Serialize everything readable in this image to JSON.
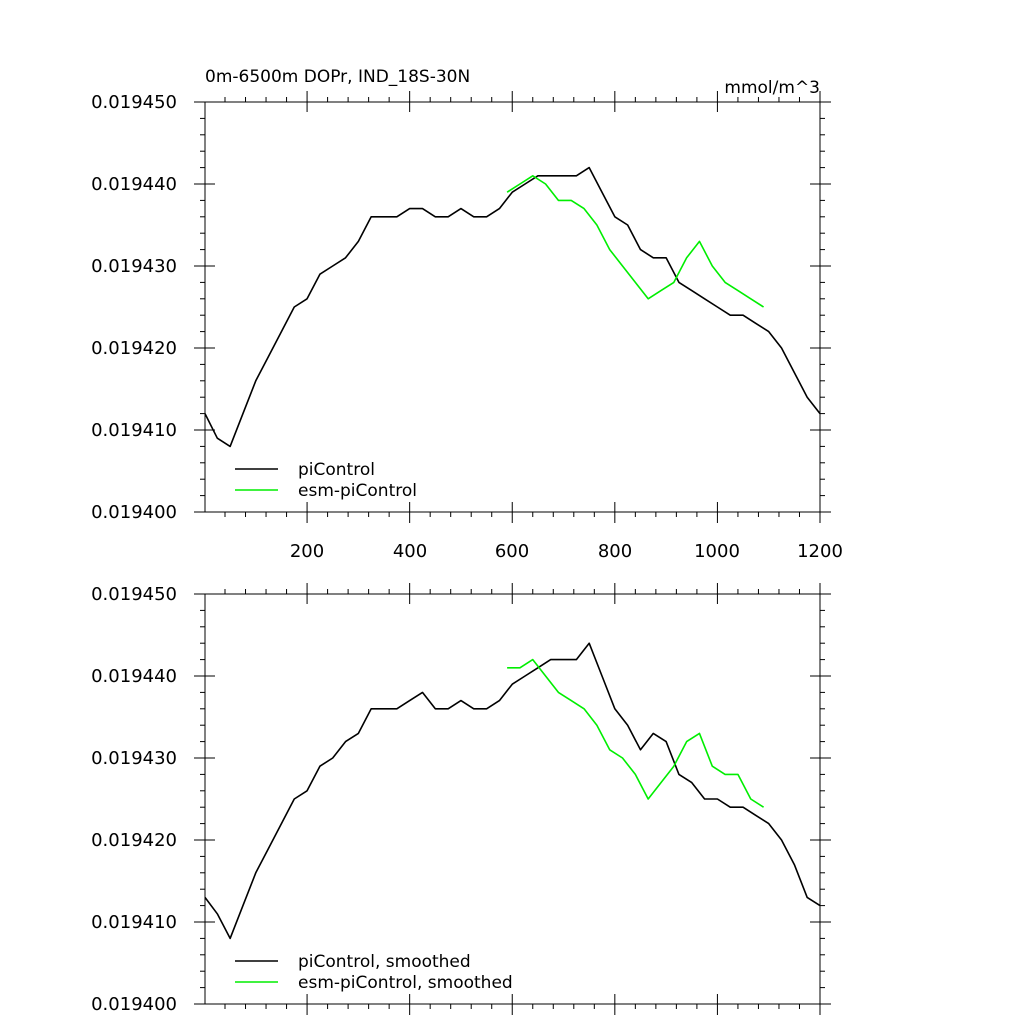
{
  "chart_data": [
    {
      "type": "line",
      "title": "0m-6500m DOPr, IND_18S-30N",
      "units": "mmol/m^3",
      "xlim": [
        1,
        1200
      ],
      "ylim": [
        0.0194,
        0.01945
      ],
      "xticks": [
        200,
        400,
        600,
        800,
        1000,
        1200
      ],
      "yticks": [
        "0.019400",
        "0.019410",
        "0.019420",
        "0.019430",
        "0.019440",
        "0.019450"
      ],
      "legend_position": "bottom-left",
      "series": [
        {
          "name": "piControl",
          "color": "#000000",
          "x": [
            1,
            25,
            50,
            75,
            100,
            125,
            150,
            175,
            200,
            225,
            250,
            275,
            300,
            325,
            350,
            375,
            400,
            425,
            450,
            475,
            500,
            525,
            550,
            575,
            600,
            625,
            650,
            675,
            700,
            725,
            750,
            775,
            800,
            825,
            850,
            875,
            900,
            925,
            950,
            975,
            1000,
            1025,
            1050,
            1075,
            1100,
            1125,
            1150,
            1175,
            1200
          ],
          "y": [
            0.019412,
            0.019409,
            0.019408,
            0.019412,
            0.019416,
            0.019419,
            0.019422,
            0.019425,
            0.019426,
            0.019429,
            0.01943,
            0.019431,
            0.019433,
            0.019436,
            0.019436,
            0.019436,
            0.019437,
            0.019437,
            0.019436,
            0.019436,
            0.019437,
            0.019436,
            0.019436,
            0.019437,
            0.019439,
            0.01944,
            0.019441,
            0.019441,
            0.019441,
            0.019441,
            0.019442,
            0.019439,
            0.019436,
            0.019435,
            0.019432,
            0.019431,
            0.019431,
            0.019428,
            0.019427,
            0.019426,
            0.019425,
            0.019424,
            0.019424,
            0.019423,
            0.019422,
            0.01942,
            0.019417,
            0.019414,
            0.019412
          ]
        },
        {
          "name": "esm-piControl",
          "color": "#00ee00",
          "x": [
            590,
            615,
            640,
            665,
            690,
            715,
            740,
            765,
            790,
            815,
            840,
            865,
            890,
            915,
            940,
            965,
            990,
            1015,
            1040,
            1065,
            1090
          ],
          "y": [
            0.019439,
            0.01944,
            0.019441,
            0.01944,
            0.019438,
            0.019438,
            0.019437,
            0.019435,
            0.019432,
            0.01943,
            0.019428,
            0.019426,
            0.019427,
            0.019428,
            0.019431,
            0.019433,
            0.01943,
            0.019428,
            0.019427,
            0.019426,
            0.019425
          ]
        }
      ]
    },
    {
      "type": "line",
      "xlim": [
        1,
        1200
      ],
      "ylim": [
        0.0194,
        0.01945
      ],
      "yticks": [
        "0.019400",
        "0.019410",
        "0.019420",
        "0.019430",
        "0.019440",
        "0.019450"
      ],
      "legend_position": "bottom-left",
      "series": [
        {
          "name": "piControl, smoothed",
          "color": "#000000",
          "x": [
            1,
            25,
            50,
            75,
            100,
            125,
            150,
            175,
            200,
            225,
            250,
            275,
            300,
            325,
            350,
            375,
            400,
            425,
            450,
            475,
            500,
            525,
            550,
            575,
            600,
            625,
            650,
            675,
            700,
            725,
            750,
            775,
            800,
            825,
            850,
            875,
            900,
            925,
            950,
            975,
            1000,
            1025,
            1050,
            1075,
            1100,
            1125,
            1150,
            1175,
            1200
          ],
          "y": [
            0.019413,
            0.019411,
            0.019408,
            0.019412,
            0.019416,
            0.019419,
            0.019422,
            0.019425,
            0.019426,
            0.019429,
            0.01943,
            0.019432,
            0.019433,
            0.019436,
            0.019436,
            0.019436,
            0.019437,
            0.019438,
            0.019436,
            0.019436,
            0.019437,
            0.019436,
            0.019436,
            0.019437,
            0.019439,
            0.01944,
            0.019441,
            0.019442,
            0.019442,
            0.019442,
            0.019444,
            0.01944,
            0.019436,
            0.019434,
            0.019431,
            0.019433,
            0.019432,
            0.019428,
            0.019427,
            0.019425,
            0.019425,
            0.019424,
            0.019424,
            0.019423,
            0.019422,
            0.01942,
            0.019417,
            0.019413,
            0.019412
          ]
        },
        {
          "name": "esm-piControl, smoothed",
          "color": "#00ee00",
          "x": [
            590,
            615,
            640,
            665,
            690,
            715,
            740,
            765,
            790,
            815,
            840,
            865,
            890,
            915,
            940,
            965,
            990,
            1015,
            1040,
            1065,
            1090
          ],
          "y": [
            0.019441,
            0.019441,
            0.019442,
            0.01944,
            0.019438,
            0.019437,
            0.019436,
            0.019434,
            0.019431,
            0.01943,
            0.019428,
            0.019425,
            0.019427,
            0.019429,
            0.019432,
            0.019433,
            0.019429,
            0.019428,
            0.019428,
            0.019425,
            0.019424
          ]
        }
      ]
    }
  ]
}
